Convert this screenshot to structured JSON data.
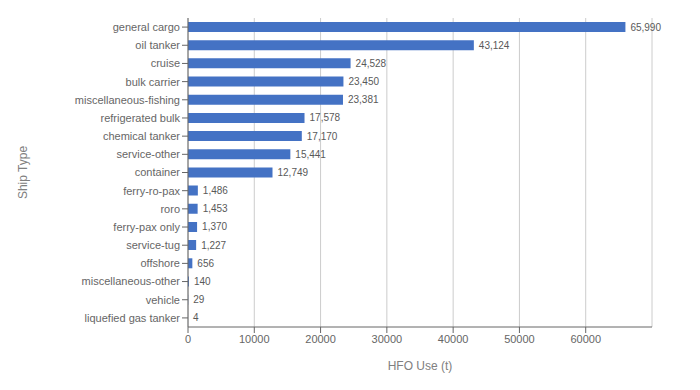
{
  "chart_data": {
    "type": "bar",
    "orientation": "horizontal",
    "xlabel": "HFO Use (t)",
    "ylabel": "Ship Type",
    "categories": [
      "liquefied gas tanker",
      "vehicle",
      "miscellaneous-other",
      "offshore",
      "service-tug",
      "ferry-pax only",
      "roro",
      "ferry-ro-pax",
      "container",
      "service-other",
      "chemical tanker",
      "refrigerated bulk",
      "miscellaneous-fishing",
      "bulk carrier",
      "cruise",
      "oil tanker",
      "general cargo"
    ],
    "values": [
      4,
      29,
      140,
      656,
      1227,
      1370,
      1453,
      1486,
      12749,
      15441,
      17170,
      17578,
      23381,
      23450,
      24528,
      43124,
      65990
    ],
    "value_labels": [
      "4",
      "29",
      "140",
      "656",
      "1,227",
      "1,370",
      "1,453",
      "1,486",
      "12,749",
      "15,441",
      "17,170",
      "17,578",
      "23,381",
      "23,450",
      "24,528",
      "43,124",
      "65,990"
    ],
    "color": "#4472C4",
    "xlim": [
      0,
      70000
    ],
    "xticks": [
      0,
      10000,
      20000,
      30000,
      40000,
      50000,
      60000
    ],
    "grid": true,
    "data_labels": true
  }
}
